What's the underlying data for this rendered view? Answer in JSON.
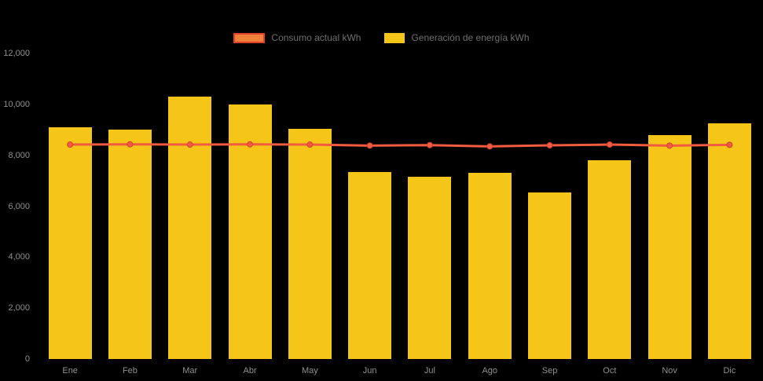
{
  "legend": {
    "items": [
      {
        "label": "Consumo actual kWh",
        "swatch_color": "#F0813B",
        "swatch_border": "#E2402C"
      },
      {
        "label": "Generación de energía kWh",
        "swatch_color": "#F5C518"
      }
    ]
  },
  "colors": {
    "background": "#000000",
    "bar": "#F5C518",
    "line": "#F15B40",
    "marker_stroke": "#D04330",
    "axis_text": "#8f8f8f",
    "legend_text": "#6f6f6f"
  },
  "chart_data": {
    "type": "bar",
    "categories": [
      "Ene",
      "Feb",
      "Mar",
      "Abr",
      "May",
      "Jun",
      "Jul",
      "Ago",
      "Sep",
      "Oct",
      "Nov",
      "Dic"
    ],
    "series": [
      {
        "name": "Consumo actual kWh",
        "type": "line",
        "color": "#F15B40",
        "values": [
          8420,
          8430,
          8420,
          8430,
          8420,
          8380,
          8400,
          8350,
          8390,
          8420,
          8380,
          8410
        ]
      },
      {
        "name": "Generación de energía kWh",
        "type": "bar",
        "color": "#F5C518",
        "values": [
          9100,
          9000,
          10300,
          10000,
          9050,
          7350,
          7150,
          7300,
          6550,
          7800,
          8800,
          9250
        ]
      }
    ],
    "title": "",
    "xlabel": "",
    "ylabel": "",
    "ylim": [
      0,
      12000
    ],
    "yticks": [
      0,
      2000,
      4000,
      6000,
      8000,
      10000,
      12000
    ],
    "ytick_labels": [
      "0",
      "2,000",
      "4,000",
      "6,000",
      "8,000",
      "10,000",
      "12,000"
    ],
    "legend_position": "top",
    "grid": false
  }
}
